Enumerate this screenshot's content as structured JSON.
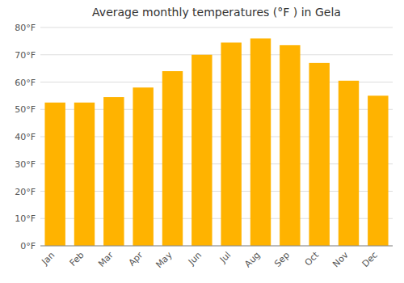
{
  "chart_data": {
    "type": "bar",
    "title": "Average monthly temperatures (°F ) in Gela",
    "categories": [
      "Jan",
      "Feb",
      "Mar",
      "Apr",
      "May",
      "Jun",
      "Jul",
      "Aug",
      "Sep",
      "Oct",
      "Nov",
      "Dec"
    ],
    "values": [
      52.5,
      52.5,
      54.5,
      58,
      64,
      70,
      74.5,
      76,
      73.5,
      67,
      60.5,
      55
    ],
    "color": "#FFB300",
    "ylim": [
      0,
      80
    ],
    "yticks": [
      {
        "value": 0,
        "label": "0°F"
      },
      {
        "value": 10,
        "label": "10°F"
      },
      {
        "value": 20,
        "label": "20°F"
      },
      {
        "value": 30,
        "label": "30°F"
      },
      {
        "value": 40,
        "label": "40°F"
      },
      {
        "value": 50,
        "label": "50°F"
      },
      {
        "value": 60,
        "label": "60°F"
      },
      {
        "value": 70,
        "label": "70°F"
      },
      {
        "value": 80,
        "label": "80°F"
      }
    ],
    "grid": true
  }
}
